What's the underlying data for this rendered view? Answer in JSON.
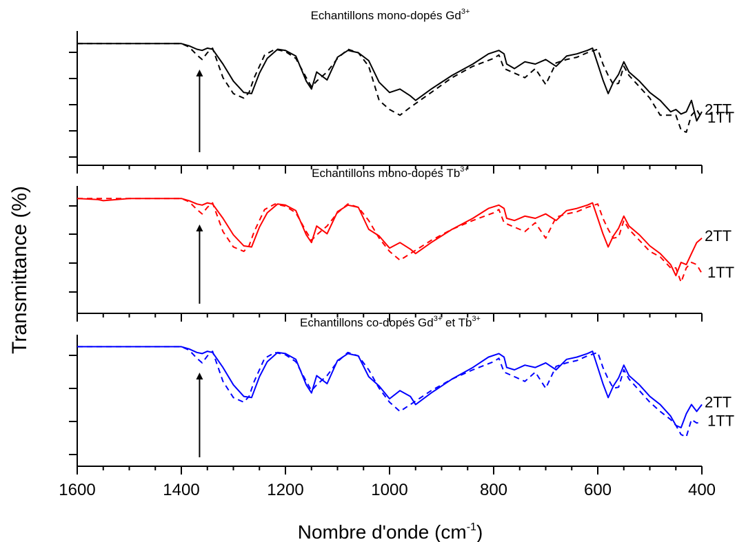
{
  "figure": {
    "ylabel": "Transmittance (%)",
    "xlabel_main": "Nombre d'onde (cm",
    "xlabel_sup": "-1",
    "xlabel_end": ")",
    "x_ticks": [
      "1600",
      "1400",
      "1200",
      "1000",
      "800",
      "600",
      "400"
    ],
    "x_axis_reversed": true
  },
  "chart_data": [
    {
      "type": "line",
      "title_parts": [
        {
          "text": "Echantillons mono-dopés Gd"
        },
        {
          "text": "3+",
          "sup": true
        }
      ],
      "xlim": [
        1600,
        400
      ],
      "ylim": [
        0,
        100
      ],
      "color": "#000000",
      "grid": false,
      "arrow_x": 1365,
      "series": [
        {
          "name": "2TT",
          "style": "solid",
          "end_label": "2TT",
          "x": [
            1600,
            1550,
            1500,
            1450,
            1400,
            1385,
            1370,
            1360,
            1350,
            1340,
            1320,
            1300,
            1280,
            1265,
            1250,
            1235,
            1215,
            1200,
            1180,
            1160,
            1150,
            1140,
            1120,
            1100,
            1080,
            1060,
            1040,
            1020,
            1000,
            980,
            960,
            950,
            920,
            880,
            840,
            810,
            790,
            780,
            775,
            760,
            740,
            720,
            700,
            680,
            660,
            640,
            620,
            610,
            600,
            590,
            580,
            570,
            560,
            550,
            540,
            520,
            500,
            480,
            460,
            450,
            440,
            430,
            420,
            410,
            400
          ],
          "y": [
            98,
            98,
            98,
            98,
            98,
            96,
            93,
            92,
            94,
            93,
            80,
            65,
            55,
            54,
            72,
            85,
            93,
            92,
            87,
            65,
            58,
            73,
            66,
            86,
            92,
            90,
            83,
            64,
            55,
            58,
            52,
            48,
            58,
            70,
            80,
            89,
            92,
            89,
            80,
            76,
            82,
            80,
            84,
            78,
            87,
            89,
            92,
            94,
            80,
            66,
            54,
            64,
            71,
            82,
            73,
            65,
            55,
            48,
            38,
            40,
            36,
            38,
            48,
            30,
            38
          ]
        },
        {
          "name": "1TT",
          "style": "dash",
          "end_label": "1TT",
          "x": [
            1600,
            1550,
            1500,
            1450,
            1400,
            1385,
            1370,
            1360,
            1350,
            1340,
            1320,
            1300,
            1280,
            1270,
            1260,
            1240,
            1220,
            1200,
            1180,
            1160,
            1150,
            1140,
            1120,
            1100,
            1080,
            1060,
            1040,
            1020,
            1000,
            980,
            960,
            920,
            880,
            840,
            800,
            790,
            780,
            760,
            740,
            720,
            700,
            680,
            660,
            640,
            620,
            600,
            590,
            580,
            570,
            560,
            550,
            540,
            520,
            500,
            480,
            460,
            450,
            440,
            430,
            420,
            410,
            400
          ],
          "y": [
            98,
            98,
            98,
            98,
            98,
            95,
            88,
            84,
            90,
            94,
            68,
            54,
            50,
            55,
            68,
            88,
            93,
            91,
            85,
            68,
            60,
            65,
            73,
            85,
            93,
            90,
            78,
            48,
            40,
            35,
            42,
            55,
            68,
            78,
            85,
            88,
            76,
            72,
            68,
            76,
            62,
            81,
            84,
            86,
            90,
            93,
            80,
            70,
            62,
            63,
            78,
            70,
            60,
            50,
            35,
            35,
            35,
            22,
            20,
            35,
            40,
            32
          ]
        }
      ]
    },
    {
      "type": "line",
      "title_parts": [
        {
          "text": "Echantillons mono-dopés Tb"
        },
        {
          "text": "3+",
          "sup": true
        }
      ],
      "xlim": [
        1600,
        400
      ],
      "ylim": [
        0,
        100
      ],
      "color": "#ff0000",
      "grid": false,
      "arrow_x": 1365,
      "series": [
        {
          "name": "2TT",
          "style": "solid",
          "end_label": "2TT",
          "x": [
            1600,
            1560,
            1550,
            1500,
            1450,
            1400,
            1385,
            1370,
            1360,
            1350,
            1340,
            1320,
            1300,
            1280,
            1265,
            1250,
            1235,
            1215,
            1200,
            1180,
            1160,
            1150,
            1140,
            1120,
            1100,
            1080,
            1060,
            1040,
            1020,
            1000,
            980,
            960,
            950,
            920,
            880,
            840,
            810,
            790,
            780,
            775,
            760,
            740,
            720,
            700,
            680,
            660,
            640,
            620,
            610,
            600,
            590,
            580,
            570,
            560,
            550,
            540,
            520,
            500,
            480,
            460,
            450,
            440,
            430,
            420,
            410,
            400
          ],
          "y": [
            98,
            97,
            96,
            98,
            98,
            98,
            96,
            93,
            92,
            94,
            93,
            80,
            65,
            55,
            54,
            72,
            85,
            93,
            92,
            87,
            65,
            58,
            73,
            66,
            86,
            92,
            90,
            70,
            64,
            53,
            58,
            52,
            48,
            58,
            70,
            80,
            89,
            92,
            89,
            80,
            78,
            82,
            80,
            84,
            78,
            87,
            89,
            92,
            94,
            80,
            66,
            54,
            64,
            71,
            82,
            73,
            65,
            55,
            48,
            38,
            28,
            40,
            38,
            48,
            58,
            62
          ]
        },
        {
          "name": "1TT",
          "style": "dash",
          "end_label": "1TT",
          "x": [
            1600,
            1550,
            1500,
            1450,
            1400,
            1385,
            1370,
            1360,
            1350,
            1340,
            1320,
            1300,
            1280,
            1270,
            1260,
            1240,
            1220,
            1200,
            1180,
            1160,
            1150,
            1140,
            1120,
            1100,
            1080,
            1060,
            1040,
            1020,
            1000,
            980,
            960,
            920,
            880,
            840,
            800,
            790,
            780,
            760,
            740,
            720,
            700,
            680,
            660,
            640,
            620,
            600,
            590,
            580,
            570,
            560,
            550,
            540,
            520,
            500,
            480,
            460,
            450,
            440,
            430,
            420,
            410,
            400
          ],
          "y": [
            98,
            98,
            98,
            98,
            98,
            95,
            88,
            84,
            90,
            94,
            68,
            54,
            50,
            55,
            68,
            88,
            93,
            91,
            85,
            68,
            60,
            65,
            73,
            85,
            93,
            90,
            78,
            62,
            50,
            42,
            48,
            60,
            70,
            78,
            85,
            88,
            76,
            72,
            68,
            76,
            62,
            81,
            84,
            86,
            90,
            93,
            80,
            70,
            62,
            63,
            78,
            70,
            60,
            50,
            45,
            35,
            35,
            22,
            35,
            40,
            38,
            30
          ]
        }
      ]
    },
    {
      "type": "line",
      "title_parts": [
        {
          "text": "Echantillons co-dopés Gd"
        },
        {
          "text": "3+",
          "sup": true
        },
        {
          "text": " et Tb"
        },
        {
          "text": "3+",
          "sup": true
        }
      ],
      "xlim": [
        1600,
        400
      ],
      "ylim": [
        0,
        100
      ],
      "color": "#0000ff",
      "grid": false,
      "arrow_x": 1365,
      "series": [
        {
          "name": "2TT",
          "style": "solid",
          "end_label": "2TT",
          "x": [
            1600,
            1550,
            1500,
            1450,
            1400,
            1385,
            1370,
            1360,
            1350,
            1340,
            1320,
            1300,
            1280,
            1265,
            1250,
            1235,
            1215,
            1200,
            1180,
            1160,
            1150,
            1140,
            1120,
            1100,
            1080,
            1060,
            1040,
            1020,
            1000,
            980,
            960,
            950,
            920,
            880,
            840,
            810,
            790,
            780,
            775,
            760,
            740,
            720,
            700,
            680,
            660,
            640,
            620,
            610,
            600,
            590,
            580,
            570,
            560,
            550,
            540,
            520,
            500,
            480,
            460,
            450,
            440,
            430,
            420,
            410,
            400
          ],
          "y": [
            98,
            98,
            98,
            98,
            98,
            96,
            93,
            92,
            94,
            93,
            80,
            65,
            55,
            54,
            72,
            85,
            93,
            92,
            87,
            65,
            58,
            73,
            66,
            86,
            92,
            90,
            72,
            64,
            53,
            60,
            55,
            48,
            58,
            70,
            80,
            89,
            92,
            89,
            80,
            78,
            82,
            80,
            84,
            78,
            87,
            89,
            92,
            94,
            80,
            66,
            54,
            64,
            71,
            82,
            73,
            65,
            55,
            48,
            38,
            30,
            28,
            40,
            48,
            42,
            48
          ]
        },
        {
          "name": "1TT",
          "style": "dash",
          "end_label": "1TT",
          "x": [
            1600,
            1550,
            1500,
            1450,
            1400,
            1385,
            1370,
            1360,
            1350,
            1340,
            1320,
            1300,
            1280,
            1270,
            1260,
            1240,
            1220,
            1200,
            1180,
            1160,
            1150,
            1140,
            1120,
            1100,
            1080,
            1060,
            1040,
            1020,
            1000,
            980,
            960,
            920,
            880,
            840,
            800,
            790,
            780,
            760,
            740,
            720,
            700,
            680,
            660,
            640,
            620,
            600,
            590,
            580,
            570,
            560,
            550,
            540,
            520,
            500,
            480,
            460,
            450,
            440,
            430,
            420,
            410,
            400
          ],
          "y": [
            98,
            98,
            98,
            98,
            98,
            95,
            88,
            84,
            90,
            94,
            68,
            54,
            50,
            55,
            68,
            88,
            93,
            91,
            85,
            68,
            60,
            65,
            73,
            85,
            93,
            90,
            78,
            62,
            50,
            42,
            48,
            60,
            70,
            78,
            85,
            88,
            76,
            72,
            68,
            76,
            62,
            81,
            84,
            86,
            90,
            93,
            80,
            70,
            62,
            63,
            78,
            70,
            60,
            50,
            42,
            35,
            30,
            22,
            20,
            35,
            32,
            33
          ]
        }
      ]
    }
  ]
}
